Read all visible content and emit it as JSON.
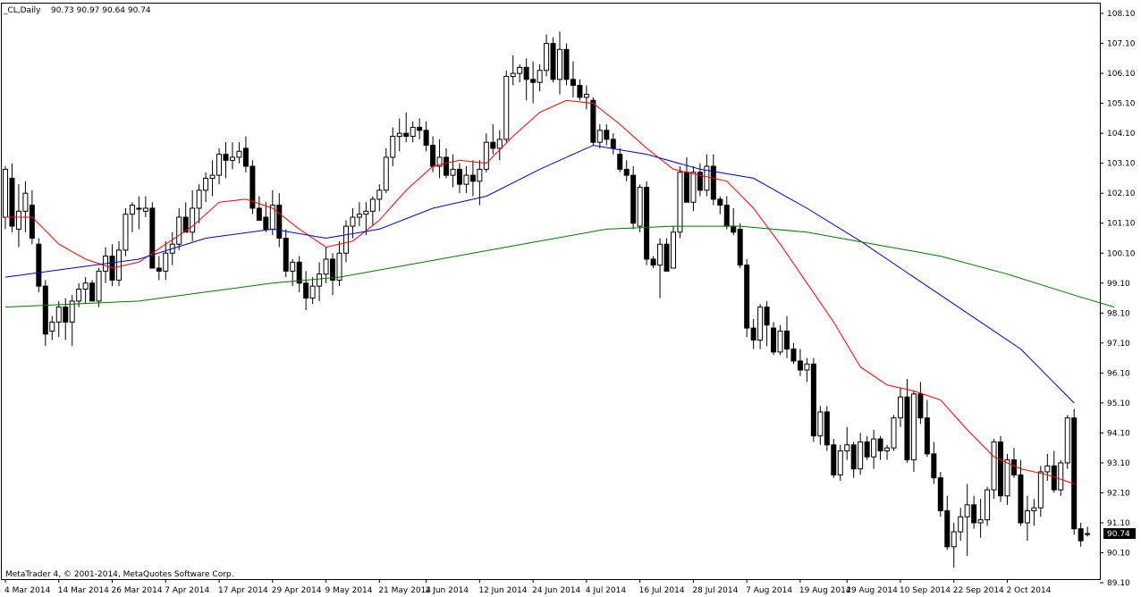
{
  "header": {
    "symbol": "_CL,Daily",
    "ohlc": "90.73 90.97 90.64 90.74"
  },
  "footer": {
    "copyright": "MetaTrader 4, © 2001-2014, MetaQuotes Software Corp."
  },
  "current_price_label": "90.74",
  "colors": {
    "background": "#ffffff",
    "frame": "#000000",
    "candle": "#000000",
    "ma_fast": "#ff0000",
    "ma_mid": "#0000cc",
    "ma_slow": "#007700"
  },
  "chart_data": {
    "type": "candlestick",
    "title": "",
    "xlabel": "",
    "ylabel": "",
    "ylim": [
      89.6,
      108.3
    ],
    "y_ticks": [
      "108.10",
      "107.10",
      "106.10",
      "105.10",
      "104.10",
      "103.10",
      "102.10",
      "101.10",
      "100.10",
      "99.10",
      "98.10",
      "97.10",
      "96.10",
      "95.10",
      "94.10",
      "93.10",
      "92.10",
      "91.10",
      "90.10",
      "89.10"
    ],
    "x_ticks": [
      {
        "label": "4 Mar 2014",
        "index": 0
      },
      {
        "label": "14 Mar 2014",
        "index": 8
      },
      {
        "label": "26 Mar 2014",
        "index": 16
      },
      {
        "label": "7 Apr 2014",
        "index": 24
      },
      {
        "label": "17 Apr 2014",
        "index": 32
      },
      {
        "label": "29 Apr 2014",
        "index": 40
      },
      {
        "label": "9 May 2014",
        "index": 48
      },
      {
        "label": "21 May 2014",
        "index": 56
      },
      {
        "label": "2 Jun 2014",
        "index": 63
      },
      {
        "label": "12 Jun 2014",
        "index": 71
      },
      {
        "label": "24 Jun 2014",
        "index": 79
      },
      {
        "label": "4 Jul 2014",
        "index": 87
      },
      {
        "label": "16 Jul 2014",
        "index": 95
      },
      {
        "label": "28 Jul 2014",
        "index": 103
      },
      {
        "label": "7 Aug 2014",
        "index": 111
      },
      {
        "label": "19 Aug 2014",
        "index": 119
      },
      {
        "label": "29 Aug 2014",
        "index": 126
      },
      {
        "label": "10 Sep 2014",
        "index": 134
      },
      {
        "label": "22 Sep 2014",
        "index": 142
      },
      {
        "label": "2 Oct 2014",
        "index": 150
      }
    ],
    "candles": [
      [
        101.3,
        103.0,
        100.9,
        102.9
      ],
      [
        102.6,
        103.1,
        100.8,
        101.0
      ],
      [
        100.9,
        102.4,
        100.3,
        101.5
      ],
      [
        101.5,
        102.5,
        100.8,
        102.1
      ],
      [
        101.7,
        102.2,
        100.4,
        100.6
      ],
      [
        100.4,
        100.6,
        98.8,
        99.0
      ],
      [
        99.0,
        99.2,
        97.0,
        97.4
      ],
      [
        97.5,
        98.0,
        97.2,
        97.8
      ],
      [
        97.8,
        98.5,
        97.3,
        98.3
      ],
      [
        98.3,
        98.6,
        97.2,
        97.8
      ],
      [
        97.8,
        98.7,
        97.0,
        98.5
      ],
      [
        98.5,
        99.1,
        98.3,
        98.9
      ],
      [
        98.9,
        99.3,
        98.4,
        99.1
      ],
      [
        99.1,
        99.2,
        98.5,
        98.5
      ],
      [
        98.5,
        99.6,
        98.3,
        99.5
      ],
      [
        99.5,
        100.3,
        99.1,
        100.0
      ],
      [
        100.0,
        100.4,
        99.0,
        99.2
      ],
      [
        99.2,
        100.5,
        99.0,
        100.2
      ],
      [
        100.2,
        101.6,
        100.0,
        101.4
      ],
      [
        101.4,
        101.8,
        100.8,
        101.7
      ],
      [
        101.6,
        102.0,
        100.9,
        101.6
      ],
      [
        101.5,
        102.0,
        101.3,
        101.6
      ],
      [
        101.6,
        101.8,
        99.6,
        99.6
      ],
      [
        99.6,
        100.0,
        99.2,
        99.5
      ],
      [
        99.5,
        100.5,
        99.2,
        100.1
      ],
      [
        100.1,
        100.8,
        99.7,
        100.4
      ],
      [
        100.4,
        101.6,
        100.2,
        101.3
      ],
      [
        101.3,
        101.8,
        100.9,
        100.8
      ],
      [
        100.8,
        102.2,
        100.5,
        101.6
      ],
      [
        101.6,
        102.4,
        101.1,
        102.2
      ],
      [
        102.2,
        102.8,
        101.8,
        102.6
      ],
      [
        102.6,
        103.2,
        102.0,
        102.7
      ],
      [
        102.7,
        103.6,
        102.4,
        103.4
      ],
      [
        103.4,
        103.8,
        102.6,
        103.2
      ],
      [
        103.2,
        103.8,
        102.9,
        103.3
      ],
      [
        103.3,
        103.8,
        103.1,
        103.5
      ],
      [
        103.6,
        104.0,
        102.8,
        103.0
      ],
      [
        103.0,
        103.2,
        101.4,
        101.6
      ],
      [
        101.6,
        102.0,
        101.2,
        101.2
      ],
      [
        101.3,
        101.8,
        100.8,
        100.9
      ],
      [
        100.9,
        102.2,
        100.7,
        101.7
      ],
      [
        101.7,
        102.1,
        100.3,
        100.6
      ],
      [
        100.6,
        100.9,
        99.3,
        99.5
      ],
      [
        99.5,
        99.9,
        99.0,
        99.8
      ],
      [
        99.8,
        100.0,
        98.8,
        99.1
      ],
      [
        99.1,
        99.5,
        98.2,
        98.6
      ],
      [
        98.6,
        99.3,
        98.4,
        99.0
      ],
      [
        99.0,
        99.8,
        98.5,
        99.4
      ],
      [
        99.4,
        100.3,
        99.1,
        99.9
      ],
      [
        99.9,
        100.1,
        98.7,
        99.2
      ],
      [
        99.2,
        100.5,
        99.0,
        100.1
      ],
      [
        100.1,
        101.2,
        99.8,
        101.0
      ],
      [
        101.0,
        101.6,
        100.6,
        101.3
      ],
      [
        101.3,
        101.8,
        101.0,
        101.4
      ],
      [
        101.4,
        101.8,
        100.7,
        101.5
      ],
      [
        101.5,
        102.0,
        101.0,
        101.9
      ],
      [
        101.9,
        102.4,
        101.5,
        102.2
      ],
      [
        102.2,
        103.6,
        102.1,
        103.3
      ],
      [
        103.3,
        104.3,
        103.0,
        104.0
      ],
      [
        104.0,
        104.6,
        103.5,
        104.1
      ],
      [
        104.1,
        104.8,
        103.8,
        104.0
      ],
      [
        104.0,
        104.5,
        103.8,
        104.3
      ],
      [
        104.3,
        104.6,
        103.9,
        104.2
      ],
      [
        104.2,
        104.5,
        103.5,
        103.7
      ],
      [
        103.7,
        104.0,
        102.8,
        103.0
      ],
      [
        103.0,
        103.9,
        102.6,
        103.3
      ],
      [
        103.3,
        103.6,
        102.6,
        102.7
      ],
      [
        102.7,
        103.4,
        102.3,
        102.9
      ],
      [
        102.9,
        103.1,
        102.1,
        102.4
      ],
      [
        102.4,
        103.0,
        102.1,
        102.7
      ],
      [
        102.7,
        103.2,
        102.0,
        102.5
      ],
      [
        102.5,
        103.2,
        101.7,
        102.9
      ],
      [
        102.9,
        104.1,
        102.8,
        103.8
      ],
      [
        103.8,
        104.4,
        103.4,
        103.6
      ],
      [
        103.6,
        104.2,
        103.2,
        103.9
      ],
      [
        103.9,
        106.2,
        103.8,
        106.0
      ],
      [
        106.0,
        106.7,
        105.7,
        106.1
      ],
      [
        106.1,
        106.4,
        105.8,
        106.3
      ],
      [
        106.3,
        106.6,
        105.2,
        105.9
      ],
      [
        105.9,
        106.5,
        105.1,
        105.8
      ],
      [
        105.8,
        106.4,
        105.5,
        106.2
      ],
      [
        106.2,
        107.4,
        106.0,
        107.1
      ],
      [
        107.1,
        107.3,
        105.8,
        105.9
      ],
      [
        105.9,
        107.5,
        105.4,
        106.9
      ],
      [
        106.9,
        107.1,
        105.7,
        105.9
      ],
      [
        105.9,
        106.5,
        105.3,
        105.7
      ],
      [
        105.7,
        105.9,
        105.2,
        105.3
      ],
      [
        105.3,
        105.7,
        104.9,
        105.4
      ],
      [
        105.2,
        105.3,
        103.7,
        103.8
      ],
      [
        103.8,
        104.4,
        103.6,
        104.2
      ],
      [
        104.2,
        104.4,
        103.7,
        103.9
      ],
      [
        103.9,
        104.1,
        103.4,
        103.6
      ],
      [
        103.4,
        103.6,
        102.8,
        102.9
      ],
      [
        102.9,
        103.2,
        102.5,
        102.7
      ],
      [
        102.7,
        103.0,
        100.9,
        101.1
      ],
      [
        101.0,
        102.4,
        100.8,
        102.3
      ],
      [
        102.3,
        102.5,
        99.7,
        99.9
      ],
      [
        99.9,
        100.0,
        99.6,
        99.7
      ],
      [
        99.7,
        100.6,
        98.6,
        100.4
      ],
      [
        100.4,
        100.6,
        99.5,
        99.5
      ],
      [
        99.6,
        101.0,
        99.6,
        100.8
      ],
      [
        100.8,
        103.0,
        100.6,
        102.8
      ],
      [
        102.8,
        103.3,
        101.8,
        101.8
      ],
      [
        101.8,
        103.0,
        101.5,
        102.8
      ],
      [
        102.8,
        103.1,
        102.0,
        102.2
      ],
      [
        102.2,
        103.4,
        102.0,
        103.0
      ],
      [
        103.0,
        103.4,
        101.7,
        101.9
      ],
      [
        101.9,
        102.0,
        101.4,
        101.7
      ],
      [
        101.7,
        102.0,
        100.9,
        101.0
      ],
      [
        101.0,
        101.6,
        100.7,
        100.8
      ],
      [
        100.9,
        101.1,
        99.6,
        99.7
      ],
      [
        99.7,
        99.9,
        97.3,
        97.6
      ],
      [
        97.6,
        97.9,
        96.9,
        97.2
      ],
      [
        97.2,
        98.4,
        96.9,
        98.3
      ],
      [
        98.3,
        98.5,
        97.0,
        97.7
      ],
      [
        97.6,
        97.8,
        96.7,
        96.8
      ],
      [
        96.8,
        97.7,
        96.7,
        97.5
      ],
      [
        97.5,
        98.0,
        96.6,
        96.9
      ],
      [
        96.9,
        97.1,
        96.4,
        96.5
      ],
      [
        96.5,
        96.9,
        96.0,
        96.2
      ],
      [
        96.2,
        96.6,
        95.8,
        96.4
      ],
      [
        96.4,
        96.6,
        93.8,
        94.0
      ],
      [
        94.0,
        95.0,
        93.7,
        94.8
      ],
      [
        94.8,
        95.0,
        93.5,
        93.7
      ],
      [
        93.7,
        93.9,
        92.6,
        92.7
      ],
      [
        92.7,
        93.7,
        92.5,
        93.5
      ],
      [
        93.5,
        94.3,
        93.2,
        93.7
      ],
      [
        93.7,
        93.8,
        92.6,
        92.9
      ],
      [
        92.9,
        94.1,
        92.7,
        93.8
      ],
      [
        93.8,
        94.0,
        93.2,
        93.3
      ],
      [
        93.3,
        94.2,
        92.9,
        93.9
      ],
      [
        93.9,
        94.0,
        93.2,
        93.5
      ],
      [
        93.5,
        93.7,
        93.2,
        93.6
      ],
      [
        93.6,
        94.7,
        93.5,
        94.6
      ],
      [
        94.6,
        95.6,
        94.3,
        95.3
      ],
      [
        95.3,
        95.9,
        93.1,
        93.2
      ],
      [
        93.2,
        95.5,
        92.8,
        95.4
      ],
      [
        95.4,
        95.8,
        94.4,
        94.6
      ],
      [
        94.6,
        95.2,
        93.3,
        93.4
      ],
      [
        93.4,
        93.8,
        92.4,
        92.6
      ],
      [
        92.6,
        92.8,
        91.3,
        91.5
      ],
      [
        91.5,
        92.0,
        90.2,
        90.3
      ],
      [
        90.3,
        91.1,
        89.6,
        90.8
      ],
      [
        90.8,
        91.6,
        90.5,
        91.3
      ],
      [
        91.3,
        92.4,
        90.0,
        91.7
      ],
      [
        91.7,
        92.0,
        90.9,
        91.1
      ],
      [
        91.1,
        91.9,
        90.6,
        91.2
      ],
      [
        91.2,
        92.3,
        91.0,
        92.2
      ],
      [
        92.2,
        93.9,
        91.9,
        93.8
      ],
      [
        93.8,
        94.0,
        91.8,
        92.0
      ],
      [
        92.0,
        93.4,
        91.7,
        93.2
      ],
      [
        93.2,
        93.6,
        92.6,
        92.7
      ],
      [
        92.7,
        93.2,
        91.0,
        91.1
      ],
      [
        91.1,
        92.0,
        90.5,
        91.5
      ],
      [
        91.5,
        91.9,
        91.0,
        91.6
      ],
      [
        91.6,
        93.0,
        91.3,
        92.8
      ],
      [
        92.8,
        93.4,
        92.5,
        93.0
      ],
      [
        93.0,
        93.5,
        92.1,
        92.2
      ],
      [
        92.2,
        93.2,
        92.0,
        93.1
      ],
      [
        93.1,
        94.7,
        92.9,
        94.6
      ],
      [
        94.6,
        94.9,
        90.7,
        90.9
      ],
      [
        90.9,
        91.1,
        90.3,
        90.5
      ],
      [
        90.73,
        90.97,
        90.64,
        90.74
      ]
    ],
    "series": [
      {
        "color": "#ff0000",
        "points": [
          [
            0,
            101.3
          ],
          [
            4,
            101.3
          ],
          [
            8,
            100.4
          ],
          [
            12,
            99.9
          ],
          [
            16,
            99.6
          ],
          [
            20,
            99.8
          ],
          [
            24,
            100.4
          ],
          [
            28,
            101.0
          ],
          [
            32,
            101.8
          ],
          [
            36,
            101.9
          ],
          [
            40,
            101.6
          ],
          [
            44,
            100.9
          ],
          [
            48,
            100.3
          ],
          [
            52,
            100.5
          ],
          [
            56,
            101.2
          ],
          [
            60,
            102.2
          ],
          [
            64,
            103.0
          ],
          [
            68,
            103.2
          ],
          [
            72,
            103.1
          ],
          [
            76,
            104.0
          ],
          [
            80,
            104.8
          ],
          [
            84,
            105.2
          ],
          [
            88,
            105.1
          ],
          [
            92,
            104.4
          ],
          [
            96,
            103.6
          ],
          [
            100,
            102.9
          ],
          [
            104,
            102.7
          ],
          [
            108,
            102.5
          ],
          [
            112,
            101.6
          ],
          [
            116,
            100.4
          ],
          [
            120,
            99.1
          ],
          [
            124,
            97.8
          ],
          [
            128,
            96.3
          ],
          [
            132,
            95.7
          ],
          [
            136,
            95.5
          ],
          [
            140,
            95.2
          ],
          [
            144,
            94.2
          ],
          [
            148,
            93.3
          ],
          [
            152,
            92.9
          ],
          [
            156,
            92.7
          ],
          [
            160,
            92.4
          ]
        ]
      },
      {
        "color": "#0000cc",
        "points": [
          [
            0,
            99.3
          ],
          [
            10,
            99.6
          ],
          [
            20,
            99.9
          ],
          [
            30,
            100.6
          ],
          [
            40,
            100.9
          ],
          [
            48,
            100.6
          ],
          [
            56,
            100.9
          ],
          [
            64,
            101.6
          ],
          [
            72,
            102.0
          ],
          [
            80,
            102.9
          ],
          [
            88,
            103.7
          ],
          [
            96,
            103.4
          ],
          [
            104,
            102.9
          ],
          [
            112,
            102.6
          ],
          [
            120,
            101.6
          ],
          [
            128,
            100.5
          ],
          [
            136,
            99.3
          ],
          [
            144,
            98.1
          ],
          [
            152,
            96.9
          ],
          [
            156,
            96.0
          ],
          [
            160,
            95.1
          ]
        ]
      },
      {
        "color": "#007700",
        "points": [
          [
            0,
            98.3
          ],
          [
            10,
            98.4
          ],
          [
            20,
            98.5
          ],
          [
            30,
            98.8
          ],
          [
            40,
            99.1
          ],
          [
            50,
            99.3
          ],
          [
            60,
            99.7
          ],
          [
            70,
            100.1
          ],
          [
            80,
            100.5
          ],
          [
            90,
            100.9
          ],
          [
            100,
            101.0
          ],
          [
            110,
            101.0
          ],
          [
            120,
            100.8
          ],
          [
            130,
            100.4
          ],
          [
            140,
            100.0
          ],
          [
            150,
            99.4
          ],
          [
            160,
            98.7
          ],
          [
            166,
            98.3
          ]
        ]
      }
    ]
  }
}
